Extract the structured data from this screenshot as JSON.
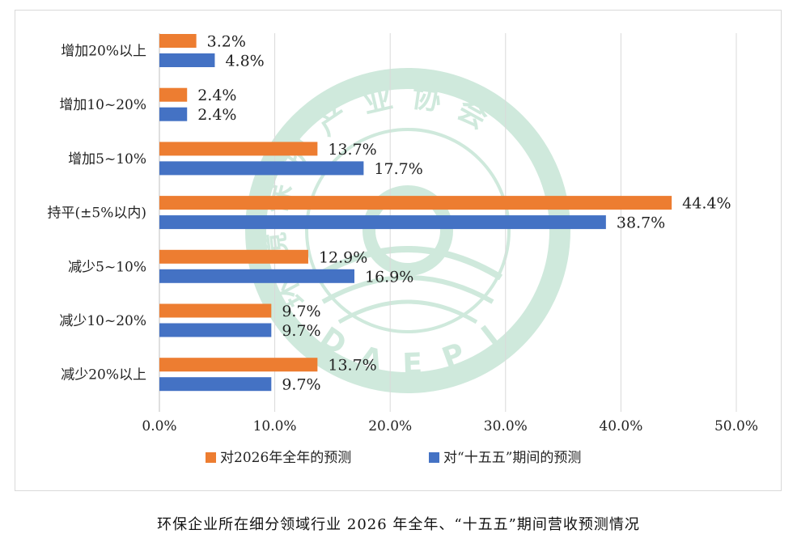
{
  "caption": "环保企业所在细分领域行业 2026 年全年、“十五五”期间营收预测情况",
  "watermark": {
    "text_top": "环境保护产业协会",
    "text_bottom": "DAEPI",
    "color": "#cfe9dc"
  },
  "chart_data": {
    "type": "bar",
    "orientation": "horizontal",
    "title": "",
    "xlabel": "",
    "ylabel": "",
    "xlim": [
      0,
      50
    ],
    "x_ticks": [
      0,
      10,
      20,
      30,
      40,
      50
    ],
    "x_tick_labels": [
      "0.0%",
      "10.0%",
      "20.0%",
      "30.0%",
      "40.0%",
      "50.0%"
    ],
    "grid": "vertical",
    "legend_position": "bottom",
    "categories": [
      "增加20%以上",
      "增加10~20%",
      "增加5~10%",
      "持平(±5%以内)",
      "减少5~10%",
      "减少10~20%",
      "减少20%以上"
    ],
    "series": [
      {
        "name": "对2026年全年的预测",
        "color": "#ed7d31",
        "values": [
          3.2,
          2.4,
          13.7,
          44.4,
          12.9,
          9.7,
          13.7
        ],
        "labels": [
          "3.2%",
          "2.4%",
          "13.7%",
          "44.4%",
          "12.9%",
          "9.7%",
          "13.7%"
        ]
      },
      {
        "name": "对“十五五”期间的预测",
        "color": "#4472c4",
        "values": [
          4.8,
          2.4,
          17.7,
          38.7,
          16.9,
          9.7,
          9.7
        ],
        "labels": [
          "4.8%",
          "2.4%",
          "17.7%",
          "38.7%",
          "16.9%",
          "9.7%",
          "9.7%"
        ]
      }
    ]
  }
}
